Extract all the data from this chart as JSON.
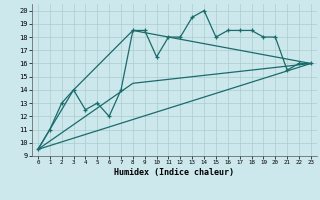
{
  "title": "",
  "xlabel": "Humidex (Indice chaleur)",
  "bg_color": "#cce8ec",
  "grid_color": "#aacccc",
  "line_color": "#1a6b6b",
  "xlim": [
    -0.5,
    23.5
  ],
  "ylim": [
    9,
    20.5
  ],
  "xticks": [
    0,
    1,
    2,
    3,
    4,
    5,
    6,
    7,
    8,
    9,
    10,
    11,
    12,
    13,
    14,
    15,
    16,
    17,
    18,
    19,
    20,
    21,
    22,
    23
  ],
  "yticks": [
    9,
    10,
    11,
    12,
    13,
    14,
    15,
    16,
    17,
    18,
    19,
    20
  ],
  "series1_x": [
    0,
    1,
    2,
    3,
    4,
    5,
    6,
    7,
    8,
    9,
    10,
    11,
    12,
    13,
    14,
    15,
    16,
    17,
    18,
    19,
    20,
    21,
    22,
    23
  ],
  "series1_y": [
    9.5,
    11.0,
    13.0,
    14.0,
    12.5,
    13.0,
    12.0,
    14.0,
    18.5,
    18.5,
    16.5,
    18.0,
    18.0,
    19.5,
    20.0,
    18.0,
    18.5,
    18.5,
    18.5,
    18.0,
    18.0,
    15.5,
    16.0,
    16.0
  ],
  "series2_x": [
    0,
    3,
    8,
    23
  ],
  "series2_y": [
    9.5,
    14.0,
    18.5,
    16.0
  ],
  "series3_x": [
    0,
    8,
    23
  ],
  "series3_y": [
    9.5,
    14.5,
    16.0
  ],
  "series4_x": [
    0,
    23
  ],
  "series4_y": [
    9.5,
    16.0
  ],
  "marker": "+"
}
